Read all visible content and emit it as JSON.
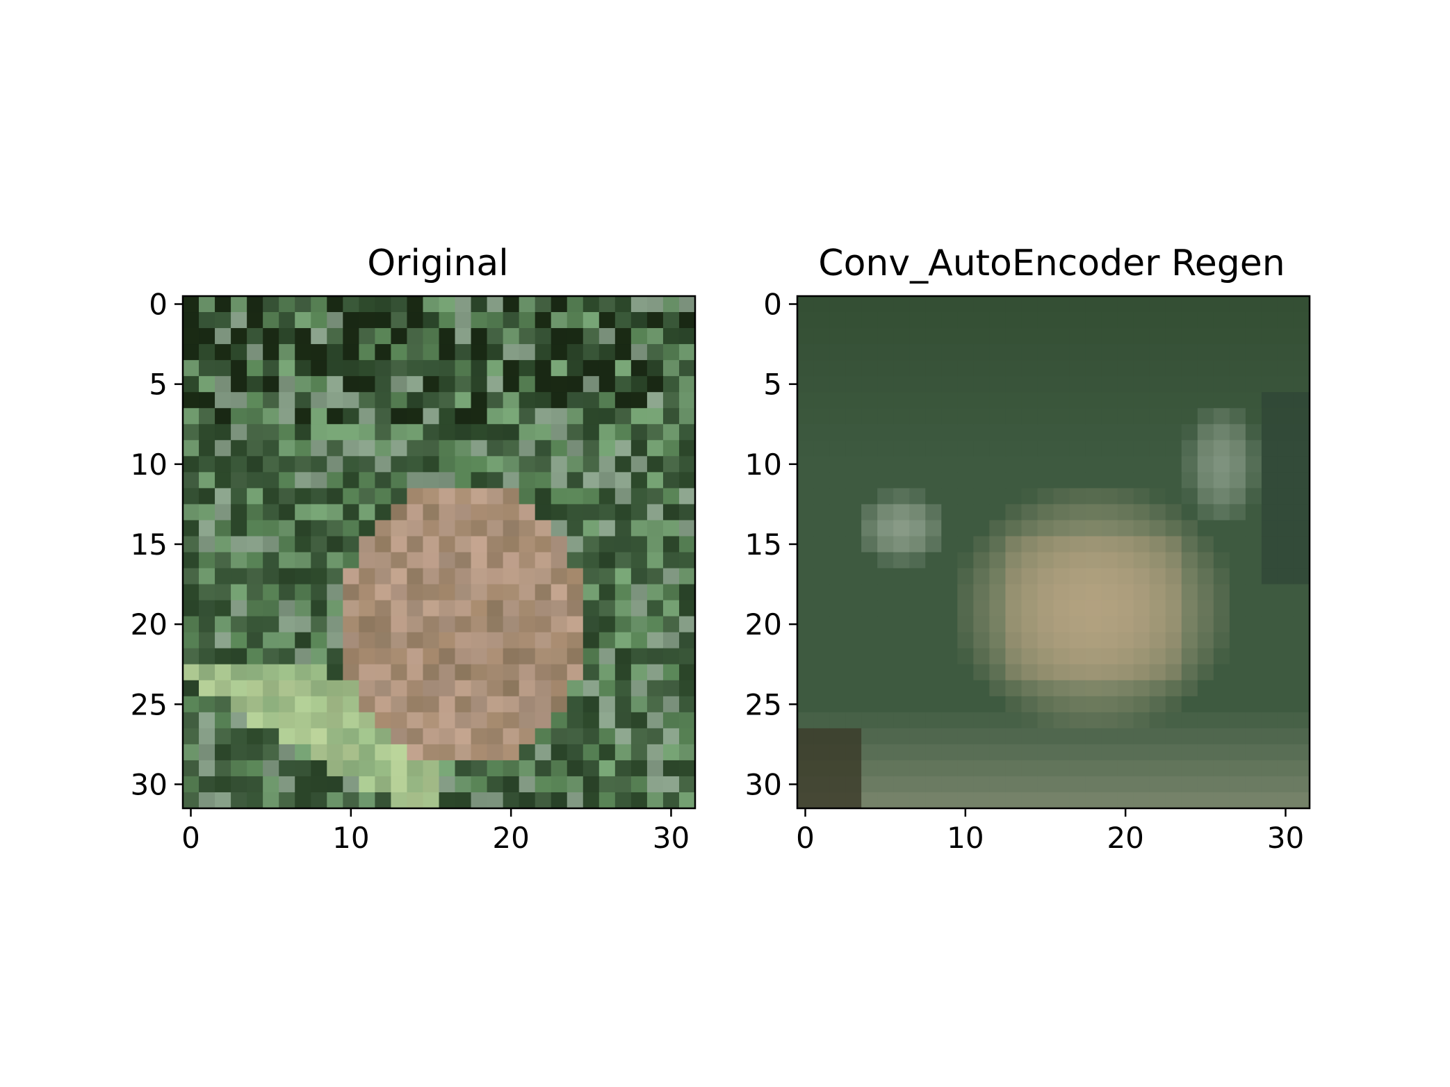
{
  "chart_data": [
    {
      "type": "heatmap",
      "title": "Original",
      "xlabel": "",
      "ylabel": "",
      "grid": false,
      "image_size": [
        32,
        32
      ],
      "xlim": [
        -0.5,
        31.5
      ],
      "ylim": [
        31.5,
        -0.5
      ],
      "xticks": [
        0,
        10,
        20,
        30
      ],
      "yticks": [
        0,
        5,
        10,
        15,
        20,
        25,
        30
      ],
      "xtick_labels": [
        "0",
        "10",
        "20",
        "30"
      ],
      "ytick_labels": [
        "0",
        "5",
        "10",
        "15",
        "20",
        "25",
        "30"
      ],
      "palette": [
        "#3b5a3a",
        "#2e4a2c",
        "#1a2a14",
        "#5d8a5a",
        "#7aa878",
        "#9dc48c",
        "#a88b6e",
        "#c4a48e",
        "#8fa890",
        "#4a6a48"
      ],
      "description_of_content": ""
    },
    {
      "type": "heatmap",
      "title": "Conv_AutoEncoder Regen",
      "xlabel": "",
      "ylabel": "",
      "grid": false,
      "image_size": [
        32,
        32
      ],
      "xlim": [
        -0.5,
        31.5
      ],
      "ylim": [
        31.5,
        -0.5
      ],
      "xticks": [
        0,
        10,
        20,
        30
      ],
      "yticks": [
        0,
        5,
        10,
        15,
        20,
        25,
        30
      ],
      "xtick_labels": [
        "0",
        "10",
        "20",
        "30"
      ],
      "ytick_labels": [
        "0",
        "5",
        "10",
        "15",
        "20",
        "25",
        "30"
      ],
      "palette": [
        "#3e5a40",
        "#2f4a2f",
        "#5d7a58",
        "#8a9a78",
        "#b4aa88",
        "#c0a07e",
        "#9aaa98",
        "#6e7a60",
        "#3a3a28",
        "#a8a890"
      ]
    }
  ]
}
